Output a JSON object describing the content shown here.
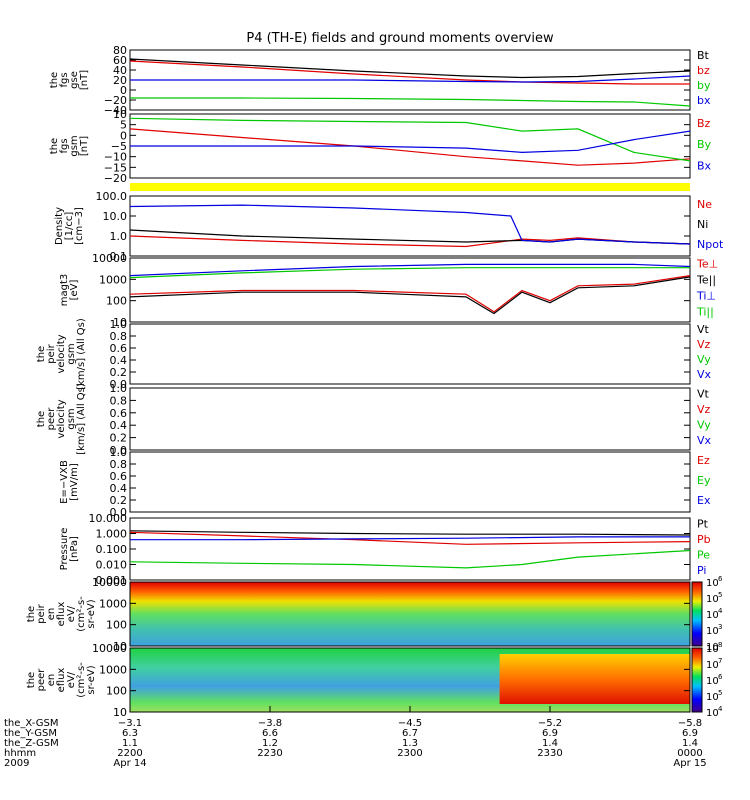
{
  "title": "P4 (TH-E) fields and ground moments overview",
  "colors": {
    "black": "#000000",
    "red": "#e00000",
    "green": "#00c800",
    "blue": "#0000e0",
    "yellow": "#ffff00"
  },
  "panels": [
    {
      "id": "fgs-gse",
      "ylabel": [
        "the",
        "fgs",
        "gse",
        "[nT]"
      ],
      "ylim": [
        -40,
        80
      ],
      "yticks": [
        "80",
        "60",
        "40",
        "20",
        "0",
        "−20",
        "−40"
      ],
      "legend": [
        {
          "text": "Bt",
          "color": "black"
        },
        {
          "text": "bz",
          "color": "red"
        },
        {
          "text": "by",
          "color": "green"
        },
        {
          "text": "bx",
          "color": "blue"
        }
      ]
    },
    {
      "id": "fgs-gsm",
      "ylabel": [
        "the",
        "fgs",
        "gsm",
        "[nT]"
      ],
      "ylim": [
        -20,
        10
      ],
      "yticks": [
        "10",
        "5",
        "0",
        "−5",
        "−10",
        "−15",
        "−20"
      ],
      "legend": [
        {
          "text": "Bz",
          "color": "red"
        },
        {
          "text": "By",
          "color": "green"
        },
        {
          "text": "Bx",
          "color": "blue"
        }
      ]
    },
    {
      "id": "density",
      "ylabel": [
        "Density",
        "[1/cc]",
        "[cm−3]"
      ],
      "ylim": [
        0.1,
        100
      ],
      "yticks": [
        "100.0",
        "10.0",
        "1.0",
        "0.1"
      ],
      "legend": [
        {
          "text": "Ne",
          "color": "red"
        },
        {
          "text": "Ni",
          "color": "black"
        },
        {
          "text": "Npot",
          "color": "blue"
        }
      ]
    },
    {
      "id": "temp",
      "ylabel": [
        "magt3",
        "[eV]"
      ],
      "ylim": [
        10,
        10000
      ],
      "yticks": [
        "10000",
        "1000",
        "100",
        "10"
      ],
      "legend": [
        {
          "text": "Te⊥",
          "color": "red"
        },
        {
          "text": "Te||",
          "color": "black"
        },
        {
          "text": "Ti⊥",
          "color": "blue"
        },
        {
          "text": "Ti||",
          "color": "green"
        }
      ]
    },
    {
      "id": "peir-vel",
      "ylabel": [
        "the",
        "peir",
        "velocity",
        "gsm",
        "[km/s] (All Qs)"
      ],
      "ylim": [
        0,
        1
      ],
      "yticks": [
        "1.0",
        "0.8",
        "0.6",
        "0.4",
        "0.2",
        "0.0"
      ],
      "legend": [
        {
          "text": "Vt",
          "color": "black"
        },
        {
          "text": "Vz",
          "color": "red"
        },
        {
          "text": "Vy",
          "color": "green"
        },
        {
          "text": "Vx",
          "color": "blue"
        }
      ]
    },
    {
      "id": "peer-vel",
      "ylabel": [
        "the",
        "peer",
        "velocity",
        "gsm",
        "[km/s] (All Qs)"
      ],
      "ylim": [
        0,
        1
      ],
      "yticks": [
        "1.0",
        "0.8",
        "0.6",
        "0.4",
        "0.2",
        "0.0"
      ],
      "legend": [
        {
          "text": "Vt",
          "color": "black"
        },
        {
          "text": "Vz",
          "color": "red"
        },
        {
          "text": "Vy",
          "color": "green"
        },
        {
          "text": "Vx",
          "color": "blue"
        }
      ]
    },
    {
      "id": "efield",
      "ylabel": [
        "E=−VXB",
        "[mV/m]"
      ],
      "ylim": [
        0,
        1
      ],
      "yticks": [
        "1.0",
        "0.8",
        "0.6",
        "0.4",
        "0.2",
        "0.0"
      ],
      "legend": [
        {
          "text": "Ez",
          "color": "red"
        },
        {
          "text": "Ey",
          "color": "green"
        },
        {
          "text": "Ex",
          "color": "blue"
        }
      ]
    },
    {
      "id": "pressure",
      "ylabel": [
        "Pressure",
        "[nPa]"
      ],
      "ylim": [
        0.001,
        10
      ],
      "yticks": [
        "10.000",
        "1.000",
        "0.100",
        "0.010",
        "0.001"
      ],
      "legend": [
        {
          "text": "Pt",
          "color": "black"
        },
        {
          "text": "Pb",
          "color": "red"
        },
        {
          "text": "Pe",
          "color": "green"
        },
        {
          "text": "Pi",
          "color": "blue"
        }
      ]
    },
    {
      "id": "peir-spec",
      "ylabel": [
        "the",
        "peir",
        "en",
        "eflux",
        "eV/",
        "(cm²-s-",
        "sr-eV)"
      ],
      "ylim": [
        10,
        10000
      ],
      "yticks": [
        "10000",
        "1000",
        "100",
        "10"
      ],
      "colorbar": [
        "10",
        "10",
        "10",
        "10",
        "10"
      ],
      "colorbar_exp": [
        "6",
        "5",
        "4",
        "3",
        ""
      ]
    },
    {
      "id": "peer-spec",
      "ylabel": [
        "the",
        "peer",
        "en",
        "eflux",
        "eV/",
        "(cm²-s-",
        "sr-eV)"
      ],
      "ylim": [
        10,
        10000
      ],
      "yticks": [
        "10000",
        "1000",
        "100",
        "10"
      ],
      "colorbar": [
        "10",
        "10",
        "10",
        "10",
        "10"
      ],
      "colorbar_exp": [
        "8",
        "7",
        "6",
        "5",
        "4"
      ]
    }
  ],
  "xaxis": {
    "row_labels": [
      "the_X-GSM",
      "the_Y-GSM",
      "the_Z-GSM",
      "hhmm",
      "2009"
    ],
    "ticks": [
      {
        "vals": [
          "−3.1",
          "6.3",
          "1.1",
          "2200",
          "Apr 14"
        ]
      },
      {
        "vals": [
          "−3.8",
          "6.6",
          "1.2",
          "2230",
          ""
        ]
      },
      {
        "vals": [
          "−4.5",
          "6.7",
          "1.3",
          "2300",
          ""
        ]
      },
      {
        "vals": [
          "−5.2",
          "6.9",
          "1.4",
          "2330",
          ""
        ]
      },
      {
        "vals": [
          "−5.8",
          "6.9",
          "1.4",
          "0000",
          "Apr 15"
        ]
      }
    ]
  },
  "chart_data": {
    "type": "line",
    "title": "P4 (TH-E) fields and ground moments overview",
    "x_time_range": [
      "2009-04-14 22:00",
      "2009-04-15 00:00"
    ],
    "series": [
      {
        "panel": "fgs-gse",
        "name": "Bt",
        "color": "black",
        "x": [
          0,
          0.2,
          0.4,
          0.6,
          0.7,
          0.8,
          0.9,
          1.0
        ],
        "y": [
          62,
          50,
          38,
          28,
          25,
          27,
          33,
          38
        ]
      },
      {
        "panel": "fgs-gse",
        "name": "bz",
        "color": "red",
        "x": [
          0,
          0.2,
          0.4,
          0.6,
          0.7,
          0.8,
          0.9,
          1.0
        ],
        "y": [
          58,
          46,
          32,
          20,
          16,
          14,
          12,
          12
        ]
      },
      {
        "panel": "fgs-gse",
        "name": "by",
        "color": "green",
        "x": [
          0,
          0.2,
          0.4,
          0.6,
          0.7,
          0.8,
          0.9,
          1.0
        ],
        "y": [
          -16,
          -16,
          -17,
          -19,
          -21,
          -23,
          -24,
          -32
        ]
      },
      {
        "panel": "fgs-gse",
        "name": "bx",
        "color": "blue",
        "x": [
          0,
          0.2,
          0.4,
          0.6,
          0.7,
          0.8,
          0.9,
          1.0
        ],
        "y": [
          20,
          20,
          20,
          17,
          16,
          17,
          22,
          28
        ]
      },
      {
        "panel": "fgs-gsm",
        "name": "Bz",
        "color": "red",
        "x": [
          0,
          0.2,
          0.4,
          0.6,
          0.7,
          0.8,
          0.9,
          1.0
        ],
        "y": [
          3,
          -1,
          -5,
          -10,
          -12,
          -14,
          -13,
          -11
        ]
      },
      {
        "panel": "fgs-gsm",
        "name": "By",
        "color": "green",
        "x": [
          0,
          0.2,
          0.4,
          0.6,
          0.7,
          0.8,
          0.9,
          1.0
        ],
        "y": [
          8,
          7,
          6.5,
          6,
          2,
          3,
          -8,
          -12
        ]
      },
      {
        "panel": "fgs-gsm",
        "name": "Bx",
        "color": "blue",
        "x": [
          0,
          0.2,
          0.4,
          0.6,
          0.7,
          0.8,
          0.9,
          1.0
        ],
        "y": [
          -5,
          -5,
          -5,
          -6,
          -8,
          -7,
          -2,
          2
        ]
      },
      {
        "panel": "density",
        "name": "Ne",
        "color": "red",
        "x": [
          0,
          0.2,
          0.4,
          0.6,
          0.7,
          0.75,
          0.8,
          0.9,
          1.0
        ],
        "y": [
          1.0,
          0.6,
          0.4,
          0.3,
          0.7,
          0.6,
          0.8,
          0.5,
          0.4
        ]
      },
      {
        "panel": "density",
        "name": "Ni",
        "color": "black",
        "x": [
          0,
          0.2,
          0.4,
          0.6,
          0.7,
          0.75,
          0.8,
          0.9,
          1.0
        ],
        "y": [
          2.0,
          1.0,
          0.7,
          0.5,
          0.6,
          0.5,
          0.7,
          0.5,
          0.4
        ]
      },
      {
        "panel": "density",
        "name": "Npot",
        "color": "blue",
        "x": [
          0,
          0.2,
          0.4,
          0.6,
          0.68,
          0.7,
          0.75,
          0.8,
          0.9,
          1.0
        ],
        "y": [
          30,
          35,
          25,
          15,
          10,
          0.6,
          0.5,
          0.7,
          0.5,
          0.4
        ]
      },
      {
        "panel": "temp",
        "name": "Te⊥",
        "color": "red",
        "x": [
          0,
          0.2,
          0.4,
          0.6,
          0.65,
          0.7,
          0.75,
          0.8,
          0.9,
          1.0
        ],
        "y": [
          200,
          300,
          300,
          200,
          30,
          300,
          100,
          500,
          600,
          1500
        ]
      },
      {
        "panel": "temp",
        "name": "Te||",
        "color": "black",
        "x": [
          0,
          0.2,
          0.4,
          0.6,
          0.65,
          0.7,
          0.75,
          0.8,
          0.9,
          1.0
        ],
        "y": [
          150,
          250,
          250,
          150,
          25,
          250,
          80,
          400,
          500,
          1300
        ]
      },
      {
        "panel": "temp",
        "name": "Ti⊥",
        "color": "blue",
        "x": [
          0,
          0.2,
          0.4,
          0.6,
          0.7,
          0.8,
          0.9,
          1.0
        ],
        "y": [
          1500,
          2500,
          4000,
          5000,
          5000,
          5000,
          5000,
          4000
        ]
      },
      {
        "panel": "temp",
        "name": "Ti||",
        "color": "green",
        "x": [
          0,
          0.2,
          0.4,
          0.6,
          0.7,
          0.8,
          0.9,
          1.0
        ],
        "y": [
          1200,
          2000,
          3000,
          3500,
          3500,
          3500,
          3500,
          3500
        ]
      },
      {
        "panel": "pressure",
        "name": "Pt",
        "color": "black",
        "x": [
          0,
          0.2,
          0.4,
          0.6,
          0.8,
          1.0
        ],
        "y": [
          1.5,
          1.2,
          1.0,
          0.9,
          0.9,
          0.8
        ]
      },
      {
        "panel": "pressure",
        "name": "Pb",
        "color": "red",
        "x": [
          0,
          0.2,
          0.4,
          0.6,
          0.8,
          1.0
        ],
        "y": [
          1.2,
          0.7,
          0.4,
          0.2,
          0.25,
          0.3
        ]
      },
      {
        "panel": "pressure",
        "name": "Pe",
        "color": "green",
        "x": [
          0,
          0.2,
          0.4,
          0.6,
          0.7,
          0.8,
          1.0
        ],
        "y": [
          0.015,
          0.012,
          0.01,
          0.006,
          0.01,
          0.03,
          0.08
        ]
      },
      {
        "panel": "pressure",
        "name": "Pi",
        "color": "blue",
        "x": [
          0,
          0.2,
          0.4,
          0.6,
          0.8,
          1.0
        ],
        "y": [
          0.4,
          0.4,
          0.45,
          0.5,
          0.6,
          0.6
        ]
      }
    ]
  }
}
